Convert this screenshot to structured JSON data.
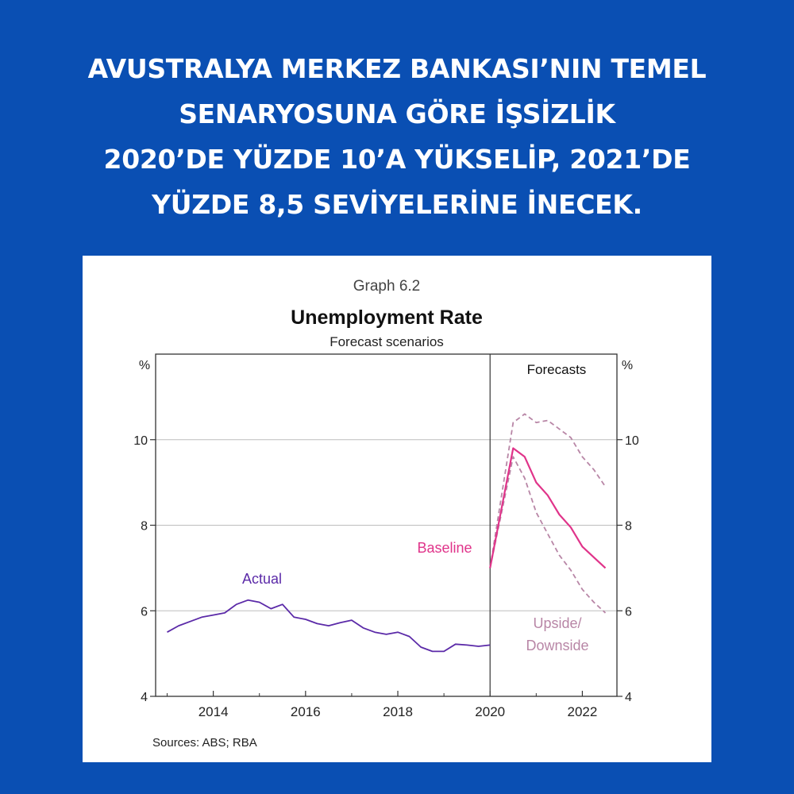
{
  "headline": {
    "lines": [
      "AVUSTRALYA MERKEZ BANKASI’NIN TEMEL",
      "SENARYOSUNA GÖRE İŞSİZLİK",
      "2020’DE YÜZDE 10’A YÜKSELİP, 2021’DE",
      "YÜZDE 8,5 SEVİYELERİNE İNECEK."
    ]
  },
  "colors": {
    "background": "#0a4fb3",
    "actual": "#5b2aa8",
    "baseline": "#e0348a",
    "scenario": "#b886a6"
  },
  "chart_data": {
    "type": "line",
    "graph_number": "Graph 6.2",
    "title": "Unemployment Rate",
    "subtitle": "Forecast scenarios",
    "y_unit_left": "%",
    "y_unit_right": "%",
    "ylim": [
      4,
      12
    ],
    "xlim": [
      2012.75,
      2022.75
    ],
    "yticks": [
      4,
      6,
      8,
      10
    ],
    "xticks": [
      2014,
      2016,
      2018,
      2020,
      2022
    ],
    "grid": true,
    "forecast_start": 2020,
    "forecast_label": "Forecasts",
    "source": "Sources: ABS; RBA",
    "annotations": {
      "actual": "Actual",
      "baseline": "Baseline",
      "scenarios_line1": "Upside/",
      "scenarios_line2": "Downside"
    },
    "series": [
      {
        "key": "actual",
        "style": "solid",
        "x": [
          2013.0,
          2013.25,
          2013.5,
          2013.75,
          2014.0,
          2014.25,
          2014.5,
          2014.75,
          2015.0,
          2015.25,
          2015.5,
          2015.75,
          2016.0,
          2016.25,
          2016.5,
          2016.75,
          2017.0,
          2017.25,
          2017.5,
          2017.75,
          2018.0,
          2018.25,
          2018.5,
          2018.75,
          2019.0,
          2019.25,
          2019.5,
          2019.75,
          2020.0
        ],
        "values": [
          5.5,
          5.65,
          5.75,
          5.85,
          5.9,
          5.95,
          6.15,
          6.25,
          6.2,
          6.05,
          6.15,
          5.85,
          5.8,
          5.7,
          5.65,
          5.72,
          5.78,
          5.6,
          5.5,
          5.45,
          5.5,
          5.4,
          5.15,
          5.05,
          5.05,
          5.22,
          5.2,
          5.17,
          5.2
        ]
      },
      {
        "key": "baseline",
        "style": "solid",
        "x": [
          2020.0,
          2020.5,
          2020.75,
          2021.0,
          2021.25,
          2021.5,
          2021.75,
          2022.0,
          2022.25,
          2022.5
        ],
        "values": [
          7.0,
          9.8,
          9.6,
          9.0,
          8.7,
          8.25,
          7.95,
          7.5,
          7.25,
          7.0
        ]
      },
      {
        "key": "upside",
        "style": "dashed",
        "x": [
          2020.0,
          2020.5,
          2020.75,
          2021.0,
          2021.25,
          2021.5,
          2021.75,
          2022.0,
          2022.25,
          2022.5
        ],
        "values": [
          7.0,
          10.4,
          10.6,
          10.4,
          10.45,
          10.25,
          10.05,
          9.6,
          9.3,
          8.9
        ]
      },
      {
        "key": "downside",
        "style": "dashed",
        "x": [
          2020.0,
          2020.5,
          2020.75,
          2021.0,
          2021.25,
          2021.5,
          2021.75,
          2022.0,
          2022.25,
          2022.5
        ],
        "values": [
          7.0,
          9.6,
          9.1,
          8.3,
          7.8,
          7.3,
          6.95,
          6.5,
          6.2,
          5.95
        ]
      }
    ]
  }
}
